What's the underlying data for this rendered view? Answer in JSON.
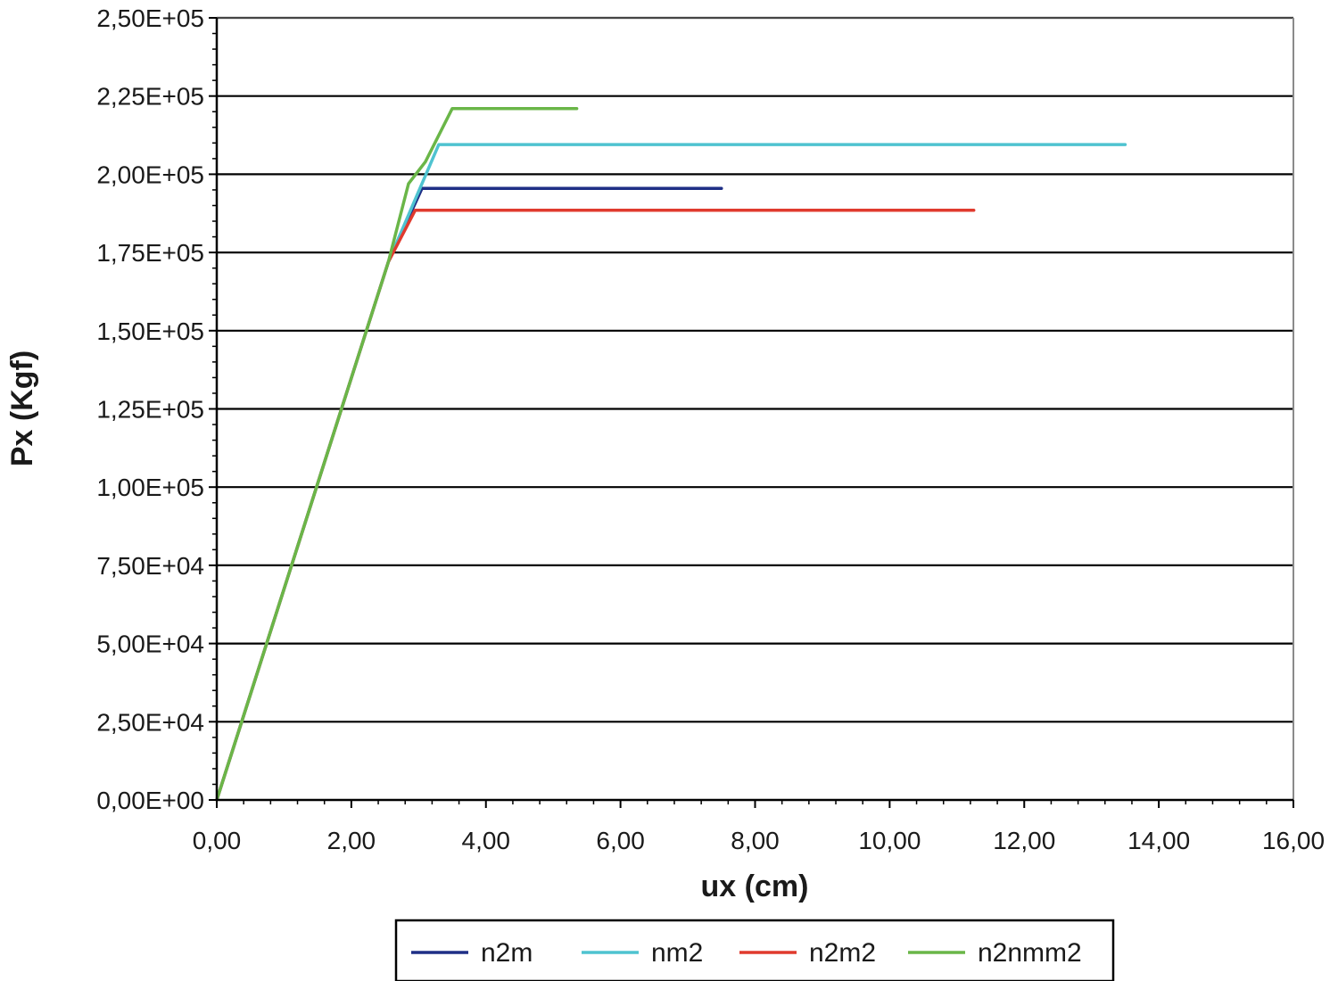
{
  "chart_data": {
    "type": "line",
    "title": "",
    "xlabel": "ux (cm)",
    "ylabel": "Px (Kgf)",
    "xlim": [
      0,
      16
    ],
    "ylim": [
      0,
      250000
    ],
    "x_ticks": [
      0,
      2,
      4,
      6,
      8,
      10,
      12,
      14,
      16
    ],
    "x_tick_labels": [
      "0,00",
      "2,00",
      "4,00",
      "6,00",
      "8,00",
      "10,00",
      "12,00",
      "14,00",
      "16,00"
    ],
    "y_ticks": [
      0,
      25000,
      50000,
      75000,
      100000,
      125000,
      150000,
      175000,
      200000,
      225000,
      250000
    ],
    "y_tick_labels": [
      "0,00E+00",
      "2,50E+04",
      "5,00E+04",
      "7,50E+04",
      "1,00E+05",
      "1,25E+05",
      "1,50E+05",
      "1,75E+05",
      "2,00E+05",
      "2,25E+05",
      "2,50E+05"
    ],
    "grid": "horizontal major lines",
    "legend_position": "bottom",
    "series": [
      {
        "name": "n2m",
        "color": "#1f2f86",
        "x": [
          0,
          2.55,
          3.05,
          7.5
        ],
        "y": [
          0,
          172000,
          195500,
          195500
        ]
      },
      {
        "name": "nm2",
        "color": "#4fc3d0",
        "x": [
          0,
          2.55,
          3.3,
          13.5
        ],
        "y": [
          0,
          172000,
          209500,
          209500
        ]
      },
      {
        "name": "n2m2",
        "color": "#e03a2e",
        "x": [
          0,
          2.55,
          2.95,
          11.25
        ],
        "y": [
          0,
          172000,
          188500,
          188500
        ]
      },
      {
        "name": "n2nmm2",
        "color": "#6ab648",
        "x": [
          0,
          2.55,
          2.85,
          3.1,
          3.5,
          5.35
        ],
        "y": [
          0,
          172000,
          197000,
          204000,
          221000,
          221000
        ]
      }
    ]
  }
}
